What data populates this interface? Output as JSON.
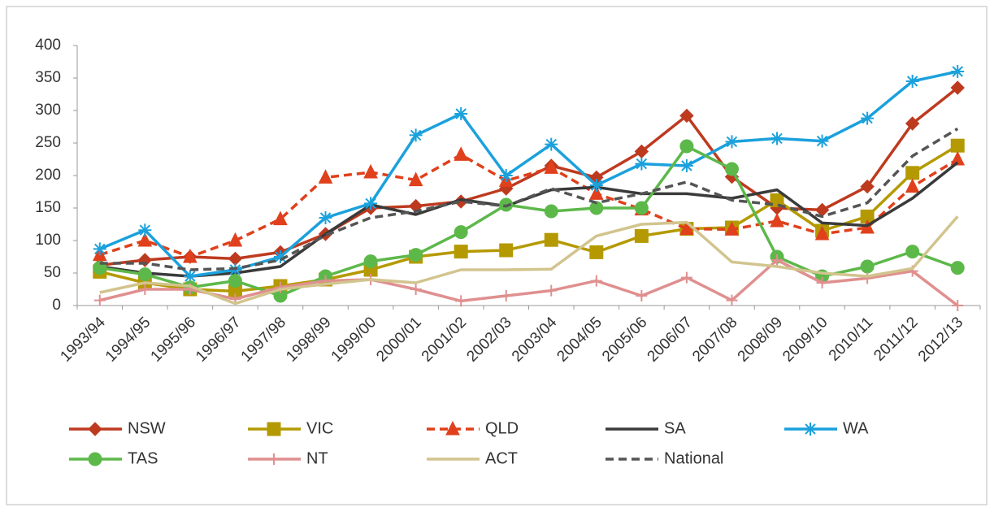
{
  "chart_data": {
    "type": "line",
    "categories": [
      "1993/94",
      "1994/95",
      "1995/96",
      "1996/97",
      "1997/98",
      "1998/99",
      "1999/00",
      "2000/01",
      "2001/02",
      "2002/03",
      "2003/04",
      "2004/05",
      "2005/06",
      "2006/07",
      "2007/08",
      "2008/09",
      "2009/10",
      "2010/11",
      "2011/12",
      "2012/13"
    ],
    "series": [
      {
        "name": "NSW",
        "color": "#be3a1f",
        "marker": "diamond",
        "dashed": false,
        "values": [
          62,
          70,
          75,
          72,
          82,
          110,
          150,
          153,
          160,
          180,
          215,
          197,
          237,
          292,
          198,
          150,
          147,
          183,
          280,
          335
        ]
      },
      {
        "name": "VIC",
        "color": "#b49a00",
        "marker": "square",
        "dashed": false,
        "values": [
          52,
          35,
          25,
          22,
          30,
          40,
          55,
          75,
          83,
          85,
          101,
          82,
          107,
          118,
          120,
          162,
          115,
          137,
          204,
          246
        ]
      },
      {
        "name": "QLD",
        "color": "#e0401c",
        "marker": "triangle",
        "dashed": true,
        "values": [
          78,
          100,
          75,
          100,
          133,
          197,
          205,
          193,
          232,
          192,
          212,
          172,
          148,
          118,
          117,
          130,
          110,
          120,
          183,
          225
        ]
      },
      {
        "name": "SA",
        "color": "#3a3a3a",
        "marker": "none",
        "dashed": false,
        "values": [
          60,
          50,
          45,
          50,
          60,
          110,
          155,
          140,
          163,
          153,
          178,
          182,
          172,
          172,
          165,
          178,
          127,
          123,
          165,
          220
        ]
      },
      {
        "name": "WA",
        "color": "#1ba1dc",
        "marker": "star",
        "dashed": false,
        "values": [
          87,
          116,
          45,
          55,
          75,
          135,
          157,
          262,
          295,
          200,
          248,
          185,
          218,
          215,
          252,
          257,
          253,
          288,
          345,
          360
        ]
      },
      {
        "name": "TAS",
        "color": "#5db84a",
        "marker": "circle",
        "dashed": false,
        "values": [
          58,
          48,
          28,
          38,
          15,
          45,
          68,
          78,
          113,
          155,
          145,
          150,
          150,
          245,
          210,
          75,
          45,
          60,
          83,
          58
        ]
      },
      {
        "name": "NT",
        "color": "#e08f8f",
        "marker": "plus",
        "dashed": false,
        "values": [
          8,
          25,
          25,
          10,
          28,
          38,
          40,
          25,
          7,
          15,
          23,
          38,
          15,
          43,
          8,
          70,
          35,
          42,
          53,
          0
        ]
      },
      {
        "name": "ACT",
        "color": "#d2c48e",
        "marker": "none",
        "dashed": false,
        "values": [
          20,
          35,
          30,
          3,
          25,
          33,
          40,
          35,
          55,
          55,
          56,
          107,
          125,
          128,
          67,
          60,
          50,
          45,
          57,
          137
        ]
      },
      {
        "name": "National",
        "color": "#555555",
        "marker": "none",
        "dashed": true,
        "values": [
          65,
          65,
          55,
          57,
          70,
          108,
          135,
          145,
          160,
          153,
          180,
          158,
          172,
          190,
          162,
          155,
          137,
          158,
          230,
          272
        ]
      }
    ],
    "ylim": [
      0,
      400
    ],
    "yticks": [
      0,
      50,
      100,
      150,
      200,
      250,
      300,
      350,
      400
    ],
    "grid": false,
    "legend": "bottom"
  }
}
